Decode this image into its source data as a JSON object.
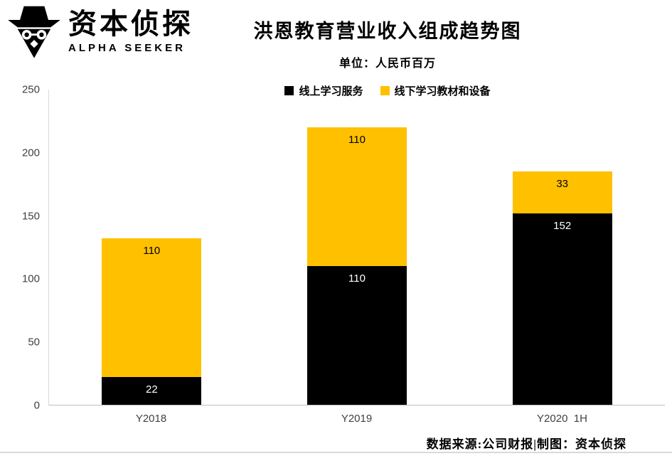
{
  "logo": {
    "name": "资本侦探",
    "subtitle": "ALPHA SEEKER"
  },
  "title": "洪恩教育营业收入组成趋势图",
  "unit_note": "单位：人民币百万",
  "footer": "数据来源:公司财报|制图：资本侦探",
  "chart_data": {
    "type": "bar",
    "stacked": true,
    "title": "洪恩教育营业收入组成趋势图",
    "subtitle": "单位：人民币百万",
    "categories": [
      "Y2018",
      "Y2019",
      "Y2020  1H"
    ],
    "series": [
      {
        "name": "线上学习服务",
        "color": "#000000",
        "label_color": "#ffffff",
        "values": [
          22,
          110,
          152
        ]
      },
      {
        "name": "线下学习教材和设备",
        "color": "#FFC000",
        "label_color": "#000000",
        "values": [
          110,
          110,
          33
        ]
      }
    ],
    "ylim": [
      0,
      250
    ],
    "yticks": [
      0,
      50,
      100,
      150,
      200,
      250
    ],
    "legend_position": "top",
    "grid": false
  }
}
